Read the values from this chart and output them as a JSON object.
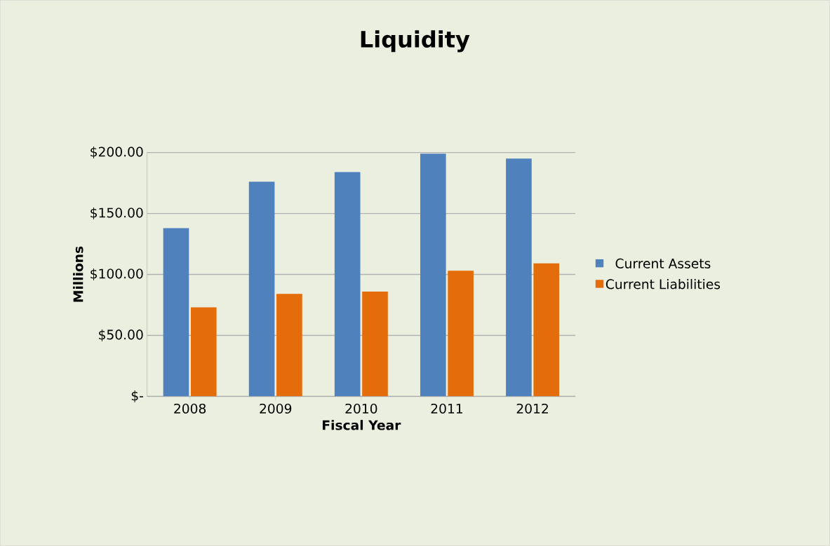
{
  "chart_data": {
    "type": "bar",
    "title": "Liquidity",
    "xlabel": "Fiscal Year",
    "ylabel": "Millions",
    "categories": [
      "2008",
      "2009",
      "2010",
      "2011",
      "2012"
    ],
    "series": [
      {
        "name": "Current Assets",
        "color": "#4f81bd",
        "values": [
          138,
          176,
          184,
          199,
          195
        ]
      },
      {
        "name": "Current Liabilities",
        "color": "#e46c0a",
        "values": [
          73,
          84,
          86,
          103,
          109
        ]
      }
    ],
    "ylim": [
      0,
      200
    ],
    "yticks": [
      {
        "value": 0,
        "label": "$-"
      },
      {
        "value": 50,
        "label": "$50.00"
      },
      {
        "value": 100,
        "label": "$100.00"
      },
      {
        "value": 150,
        "label": "$150.00"
      },
      {
        "value": 200,
        "label": "$200.00"
      }
    ],
    "grid": true,
    "legend": "right"
  }
}
